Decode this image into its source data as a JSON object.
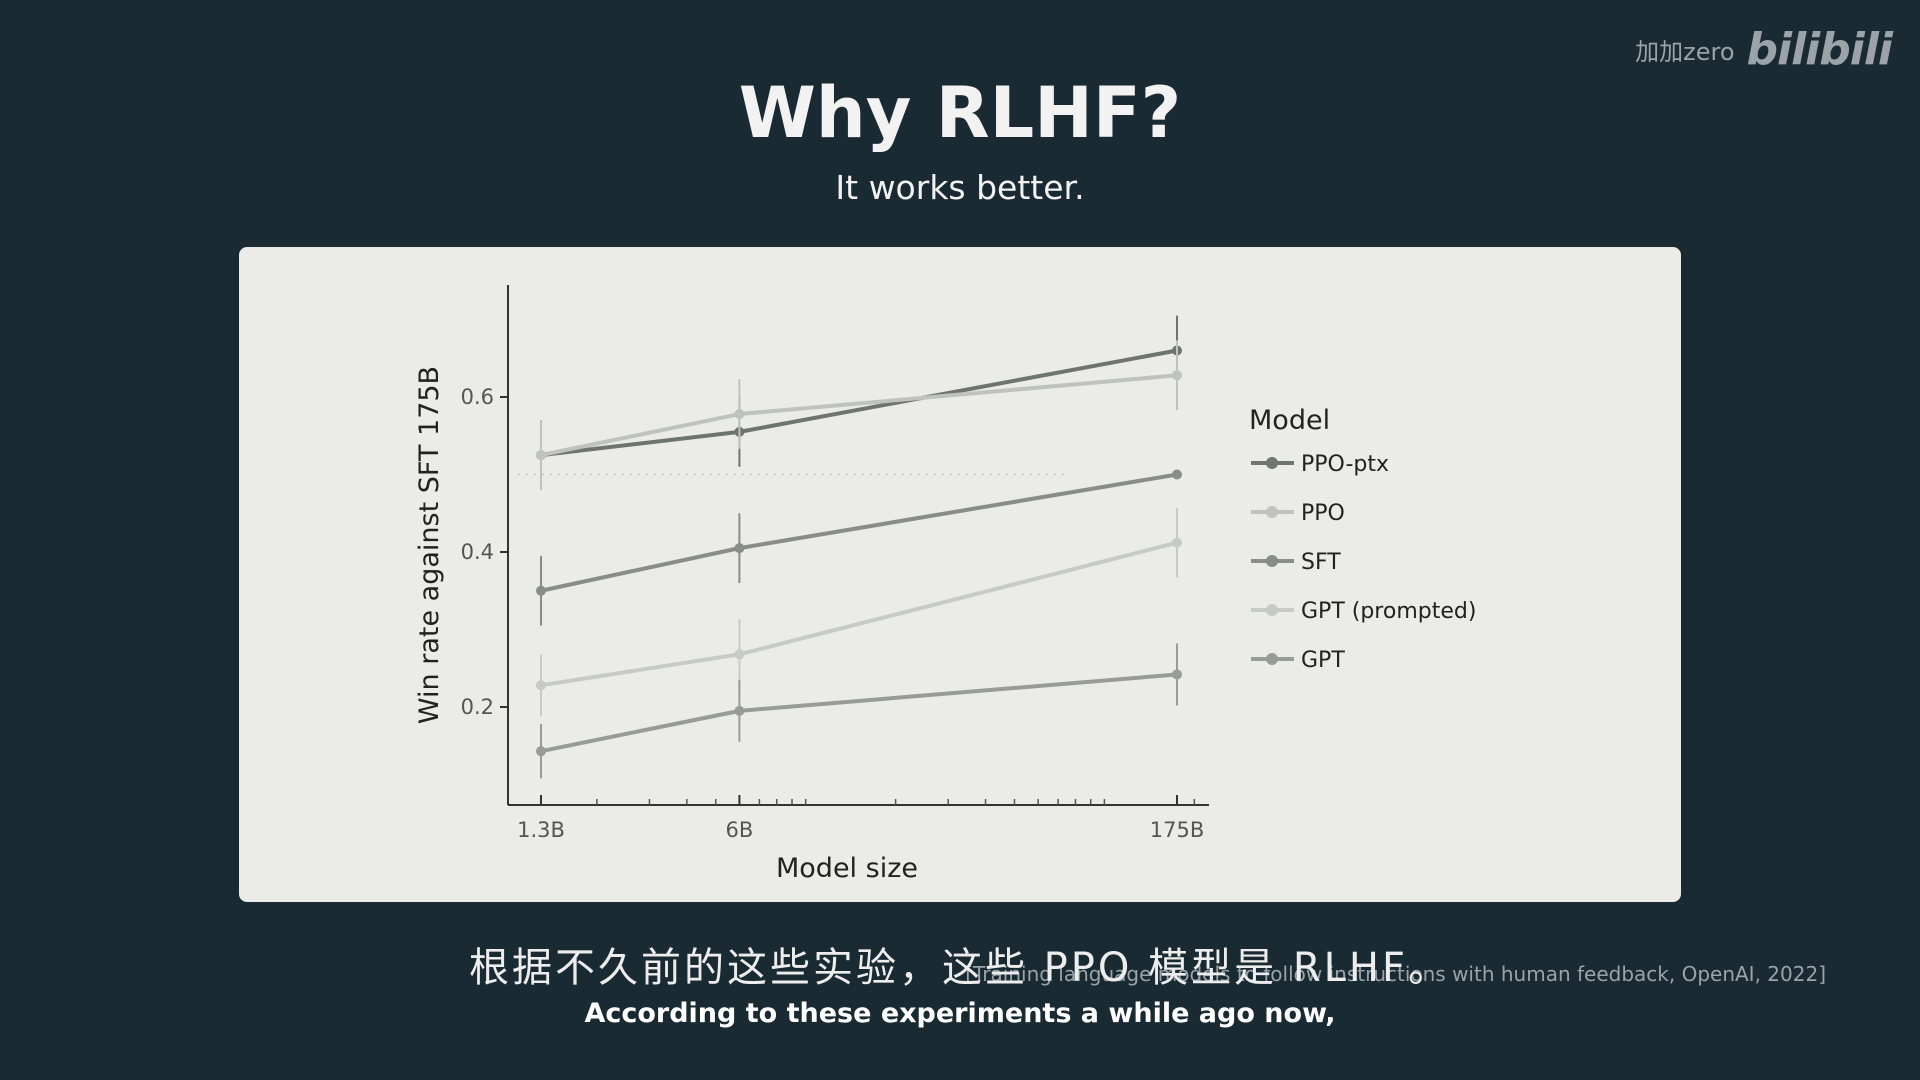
{
  "watermark": {
    "text": "加加zero",
    "logo": "bilibili"
  },
  "slide": {
    "title": "Why RLHF?",
    "subtitle": "It works better."
  },
  "citation": "[Training language models to follow instructions with human feedback, OpenAI, 2022]",
  "captions": {
    "chinese": "根据不久前的这些实验，这些 PPO 模型是 RLHF。",
    "english": "According to these experiments a while ago now,"
  },
  "chart_data": {
    "type": "line",
    "xlabel": "Model size",
    "ylabel": "Win rate against SFT 175B",
    "xscale": "log",
    "x": [
      1.3,
      6,
      175
    ],
    "x_tick_labels": [
      "1.3B",
      "6B",
      "175B"
    ],
    "ylim": [
      0.1,
      0.75
    ],
    "y_ticks": [
      0.2,
      0.4,
      0.6
    ],
    "y_tick_labels": [
      "0.2",
      "0.4",
      "0.6"
    ],
    "reference_line_y": 0.5,
    "legend": {
      "title": "Model",
      "position": "right"
    },
    "series": [
      {
        "name": "PPO-ptx",
        "color": "#6e7470",
        "values": [
          0.525,
          0.555,
          0.66
        ],
        "err": [
          0.045,
          0.045,
          0.045
        ]
      },
      {
        "name": "PPO",
        "color": "#bfc2bf",
        "values": [
          0.525,
          0.578,
          0.628
        ],
        "err": [
          0.045,
          0.045,
          0.045
        ]
      },
      {
        "name": "SFT",
        "color": "#8a8d87",
        "values": [
          0.35,
          0.405,
          0.5
        ],
        "err": [
          0.045,
          0.045,
          0.0
        ]
      },
      {
        "name": "GPT (prompted)",
        "color": "#c8cac6",
        "values": [
          0.228,
          0.268,
          0.412
        ],
        "err": [
          0.04,
          0.045,
          0.045
        ]
      },
      {
        "name": "GPT",
        "color": "#999b95",
        "values": [
          0.143,
          0.195,
          0.242
        ],
        "err": [
          0.035,
          0.04,
          0.04
        ]
      }
    ]
  }
}
